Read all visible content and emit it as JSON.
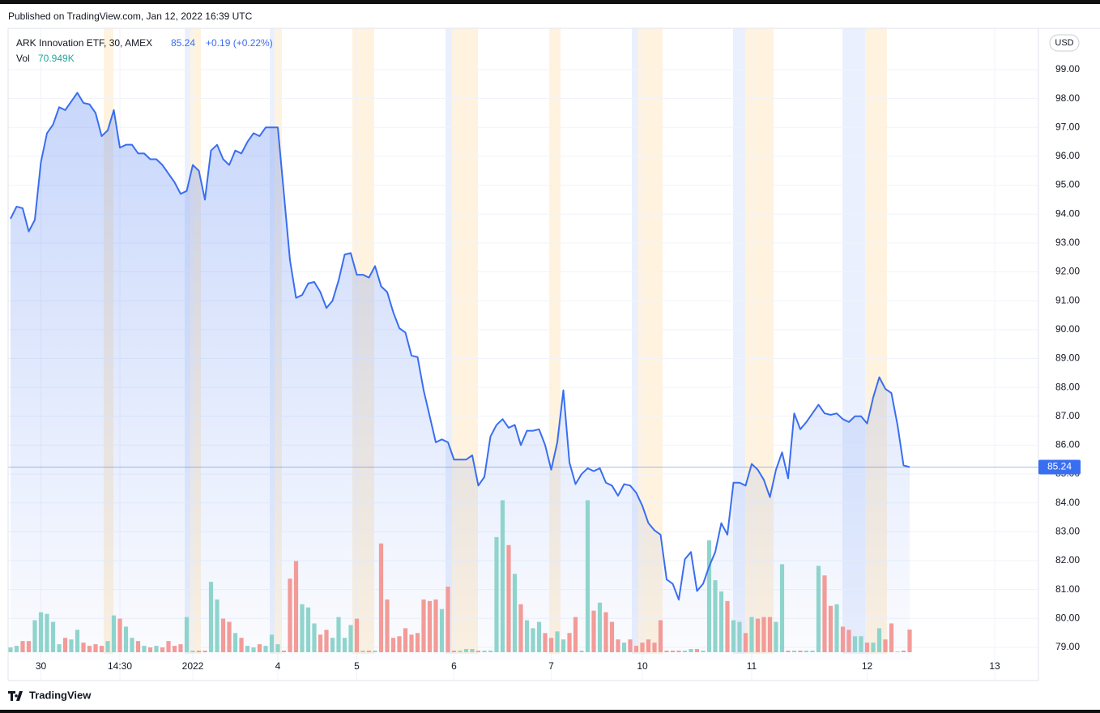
{
  "publisher": "Published on TradingView.com, Jan 12, 2022 16:39 UTC",
  "brand": "TradingView",
  "chart_data": {
    "type": "line",
    "title": "ARK Innovation ETF, 30, AMEX",
    "last_price": 85.24,
    "change_label": "+0.19 (+0.22%)",
    "currency": "USD",
    "volume_name": "Vol",
    "volume_label": "70.949K",
    "line_color": "#3a6ef0",
    "up_color": "#8fd4cc",
    "down_color": "#f29b98",
    "grid": true,
    "ylim": [
      78.55,
      100.43
    ],
    "yticks": [
      {
        "value": 79,
        "label": "79.00"
      },
      {
        "value": 80,
        "label": "80.00"
      },
      {
        "value": 81,
        "label": "81.00"
      },
      {
        "value": 82,
        "label": "82.00"
      },
      {
        "value": 83,
        "label": "83.00"
      },
      {
        "value": 84,
        "label": "84.00"
      },
      {
        "value": 85,
        "label": "85.00"
      },
      {
        "value": 86,
        "label": "86.00"
      },
      {
        "value": 87,
        "label": "87.00"
      },
      {
        "value": 88,
        "label": "88.00"
      },
      {
        "value": 89,
        "label": "89.00"
      },
      {
        "value": 90,
        "label": "90.00"
      },
      {
        "value": 91,
        "label": "91.00"
      },
      {
        "value": 92,
        "label": "92.00"
      },
      {
        "value": 93,
        "label": "93.00"
      },
      {
        "value": 94,
        "label": "94.00"
      },
      {
        "value": 95,
        "label": "95.00"
      },
      {
        "value": 96,
        "label": "96.00"
      },
      {
        "value": 97,
        "label": "97.00"
      },
      {
        "value": 98,
        "label": "98.00"
      },
      {
        "value": 99,
        "label": "99.00"
      }
    ],
    "volume_ylim": [
      0,
      1950
    ],
    "categories": [
      null,
      null,
      null,
      null,
      null,
      "30",
      null,
      null,
      null,
      null,
      null,
      null,
      null,
      null,
      null,
      null,
      null,
      null,
      "14:30",
      null,
      null,
      null,
      null,
      null,
      null,
      null,
      null,
      null,
      null,
      null,
      "2022",
      null,
      null,
      null,
      null,
      null,
      null,
      null,
      null,
      null,
      null,
      null,
      null,
      null,
      "4",
      null,
      null,
      null,
      null,
      null,
      null,
      null,
      null,
      null,
      null,
      null,
      null,
      "5",
      null,
      null,
      null,
      null,
      null,
      null,
      null,
      null,
      null,
      null,
      null,
      null,
      null,
      null,
      null,
      "6",
      null,
      null,
      null,
      null,
      null,
      null,
      null,
      null,
      null,
      null,
      null,
      null,
      null,
      null,
      null,
      "7",
      null,
      null,
      null,
      null,
      null,
      null,
      null,
      null,
      null,
      null,
      null,
      null,
      null,
      null,
      "10",
      null,
      null,
      null,
      null,
      null,
      null,
      null,
      null,
      null,
      null,
      null,
      null,
      null,
      null,
      null,
      null,
      null,
      "11",
      null,
      null,
      null,
      null,
      null,
      null,
      null,
      null,
      null,
      null,
      null,
      null,
      null,
      null,
      null,
      null,
      null,
      null,
      "12",
      null,
      null,
      null,
      null,
      null,
      null,
      null,
      null,
      null,
      null,
      null,
      null,
      null,
      null,
      null,
      null,
      null,
      null,
      null,
      null,
      "13",
      null,
      null,
      null,
      null,
      null,
      null,
      null
    ],
    "series": [
      {
        "name": "ARK Innovation ETF",
        "values": [
          93.84,
          94.26,
          94.2,
          93.4,
          93.8,
          95.8,
          96.8,
          97.1,
          97.7,
          97.6,
          97.9,
          98.2,
          97.85,
          97.8,
          97.5,
          96.7,
          96.9,
          97.6,
          96.3,
          96.4,
          96.4,
          96.1,
          96.1,
          95.9,
          95.9,
          95.7,
          95.4,
          95.1,
          94.7,
          94.8,
          95.7,
          95.5,
          94.5,
          96.2,
          96.4,
          95.9,
          95.7,
          96.2,
          96.1,
          96.5,
          96.8,
          96.7,
          97.0,
          97.0,
          97.0,
          94.7,
          92.4,
          91.1,
          91.2,
          91.6,
          91.65,
          91.3,
          90.75,
          91.0,
          91.7,
          92.6,
          92.65,
          91.9,
          91.9,
          91.8,
          92.2,
          91.5,
          91.3,
          90.6,
          90.05,
          89.9,
          89.1,
          89.05,
          87.9,
          87.0,
          86.1,
          86.2,
          86.1,
          85.5,
          85.5,
          85.5,
          85.65,
          84.6,
          84.9,
          86.3,
          86.7,
          86.9,
          86.6,
          86.7,
          86.0,
          86.5,
          86.5,
          86.55,
          86.0,
          85.15,
          86.1,
          87.9,
          85.4,
          84.65,
          85.0,
          85.2,
          85.1,
          85.2,
          84.7,
          84.6,
          84.25,
          84.65,
          84.6,
          84.35,
          83.9,
          83.3,
          83.05,
          82.9,
          81.35,
          81.2,
          80.65,
          82.05,
          82.3,
          80.95,
          81.2,
          81.8,
          82.3,
          83.3,
          82.9,
          84.7,
          84.7,
          84.6,
          85.35,
          85.15,
          84.8,
          84.2,
          85.15,
          85.75,
          84.85,
          87.1,
          86.55,
          86.8,
          87.1,
          87.4,
          87.1,
          87.05,
          87.1,
          86.9,
          86.8,
          87.0,
          87.0,
          86.75,
          87.65,
          88.35,
          87.95,
          87.8,
          86.7,
          85.3,
          85.24,
          null,
          null,
          null,
          null,
          null,
          null,
          null,
          null,
          null,
          null,
          null,
          null,
          null,
          null,
          null,
          null,
          null,
          null,
          null,
          null,
          null
        ]
      },
      {
        "name": "Vol",
        "axis": "volume",
        "values": [
          15,
          20,
          35,
          35,
          100,
          125,
          120,
          95,
          25,
          45,
          40,
          70,
          30,
          20,
          25,
          20,
          35,
          115,
          105,
          80,
          45,
          35,
          20,
          15,
          20,
          15,
          35,
          20,
          25,
          110,
          5,
          5,
          5,
          220,
          165,
          105,
          95,
          60,
          45,
          20,
          15,
          25,
          20,
          55,
          25,
          5,
          230,
          285,
          150,
          140,
          90,
          55,
          70,
          45,
          110,
          45,
          85,
          105,
          5,
          5,
          5,
          340,
          165,
          45,
          50,
          75,
          55,
          60,
          165,
          160,
          165,
          135,
          205,
          5,
          5,
          10,
          10,
          5,
          5,
          5,
          360,
          475,
          335,
          245,
          150,
          100,
          75,
          95,
          60,
          45,
          65,
          40,
          60,
          110,
          5,
          475,
          130,
          155,
          125,
          95,
          40,
          30,
          40,
          20,
          30,
          40,
          30,
          100,
          5,
          5,
          5,
          5,
          10,
          10,
          5,
          350,
          225,
          190,
          160,
          100,
          95,
          60,
          110,
          105,
          110,
          110,
          95,
          275,
          5,
          5,
          5,
          5,
          5,
          270,
          240,
          145,
          150,
          80,
          70,
          50,
          50,
          30,
          30,
          75,
          40,
          90,
          2,
          5,
          71,
          null,
          null,
          null,
          null,
          null,
          null,
          null,
          null,
          null,
          null,
          null,
          null,
          null,
          null,
          null,
          null,
          null,
          null,
          null,
          null,
          null
        ]
      }
    ]
  }
}
